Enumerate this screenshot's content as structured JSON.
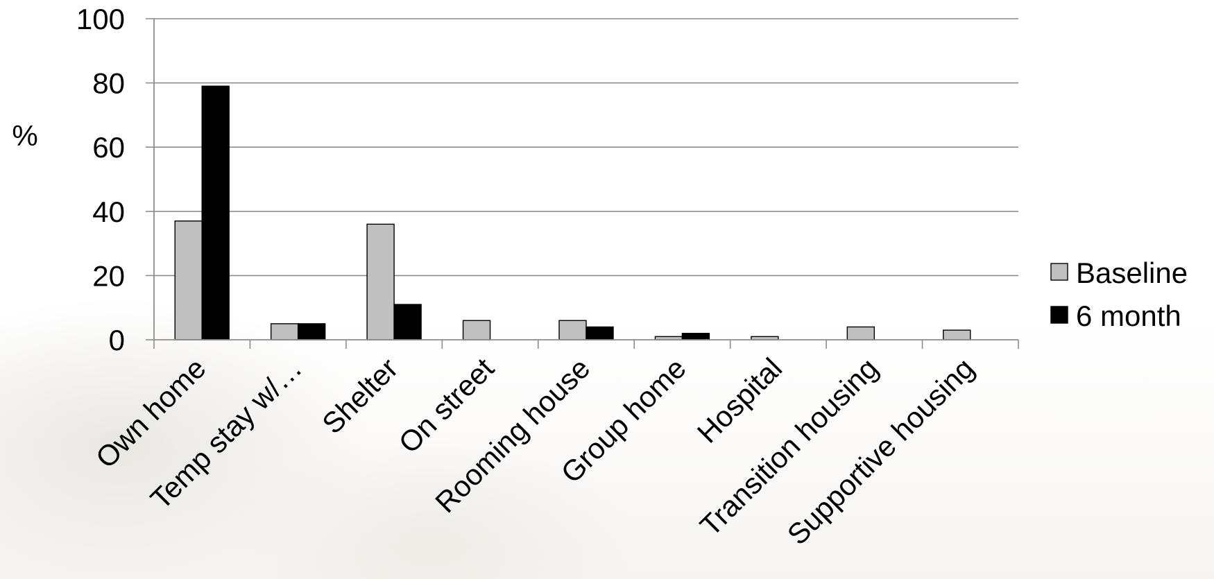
{
  "chart_data": {
    "type": "bar",
    "title": "",
    "xlabel": "",
    "ylabel": "%",
    "ylim": [
      0,
      100
    ],
    "yticks": [
      0,
      20,
      40,
      60,
      80,
      100
    ],
    "grid": true,
    "legend_position": "right",
    "categories": [
      "Own home",
      "Temp stay w/…",
      "Shelter",
      "On street",
      "Rooming house",
      "Group home",
      "Hospital",
      "Transition housing",
      "Supportive housing"
    ],
    "series": [
      {
        "name": "Baseline",
        "color": "#c0c0c0",
        "values": [
          37,
          5,
          36,
          6,
          6,
          1,
          1,
          4,
          3
        ]
      },
      {
        "name": "6 month",
        "color": "#000000",
        "values": [
          79,
          5,
          11,
          0,
          4,
          2,
          0,
          0,
          0
        ]
      }
    ]
  }
}
